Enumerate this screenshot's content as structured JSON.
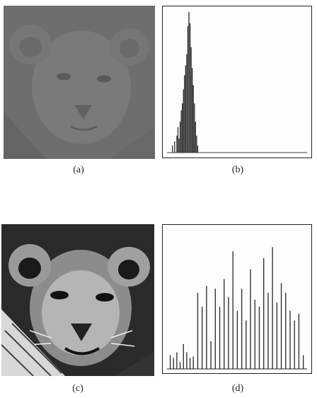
{
  "captions": {
    "a": "(a)",
    "b": "(b)",
    "c": "(c)",
    "d": "(d)"
  },
  "chart_data": [
    {
      "type": "bar",
      "description_ref": "b",
      "x": [
        10,
        14,
        18,
        20,
        22,
        24,
        26,
        28,
        30,
        32,
        34,
        36,
        38,
        40,
        42,
        44,
        46,
        48,
        50,
        52,
        54,
        56
      ],
      "values": [
        0.05,
        0.08,
        0.12,
        0.18,
        0.1,
        0.22,
        0.3,
        0.35,
        0.45,
        0.55,
        0.62,
        0.7,
        0.9,
        1.0,
        0.92,
        0.75,
        0.6,
        0.48,
        0.35,
        0.22,
        0.12,
        0.05
      ],
      "xlim": [
        0,
        255
      ],
      "ylim": [
        0,
        1
      ],
      "xlabel": "",
      "ylabel": "",
      "title": ""
    },
    {
      "type": "bar",
      "description_ref": "d",
      "x": [
        6,
        12,
        18,
        24,
        30,
        36,
        42,
        48,
        56,
        64,
        72,
        80,
        88,
        96,
        104,
        112,
        120,
        128,
        136,
        144,
        152,
        160,
        168,
        176,
        184,
        192,
        200,
        208,
        216,
        224,
        232,
        240,
        248
      ],
      "values": [
        0.1,
        0.08,
        0.12,
        0.05,
        0.18,
        0.12,
        0.08,
        0.09,
        0.55,
        0.45,
        0.6,
        0.2,
        0.58,
        0.45,
        0.65,
        0.52,
        0.85,
        0.42,
        0.58,
        0.35,
        0.72,
        0.5,
        0.45,
        0.8,
        0.55,
        0.88,
        0.48,
        0.62,
        0.55,
        0.42,
        0.35,
        0.4,
        0.1
      ],
      "xlim": [
        0,
        255
      ],
      "ylim": [
        0,
        1
      ],
      "xlabel": "",
      "ylabel": "",
      "title": ""
    }
  ]
}
